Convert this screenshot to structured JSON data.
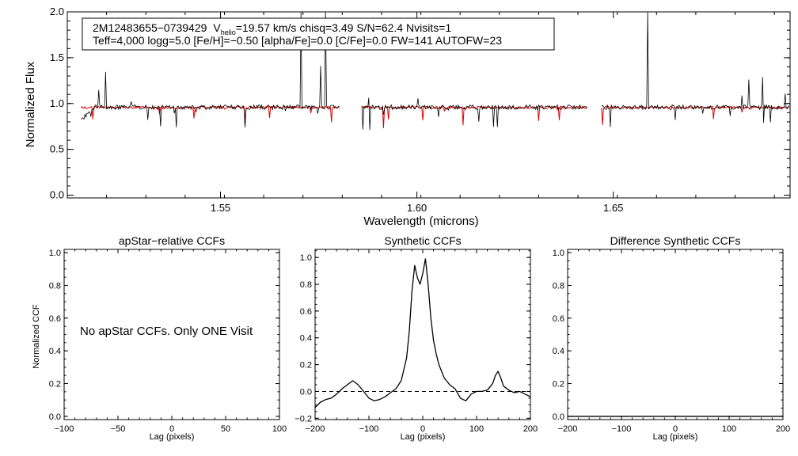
{
  "chart_data": [
    {
      "type": "line",
      "id": "spectrum",
      "ylabel": "Normalized Flux",
      "xlabel": "Wavelength (microns)",
      "xlim": [
        1.511,
        1.695
      ],
      "ylim": [
        -0.03,
        2.0
      ],
      "x_ticks": [
        1.55,
        1.6,
        1.65
      ],
      "x_tick_labels": [
        "1.55",
        "1.60",
        "1.65"
      ],
      "y_ticks": [
        0.0,
        0.5,
        1.0,
        1.5,
        2.0
      ],
      "y_tick_labels": [
        "0.0",
        "0.5",
        "1.0",
        "1.5",
        "2.0"
      ],
      "chip_ranges": [
        [
          1.5145,
          1.5805
        ],
        [
          1.586,
          1.6435
        ],
        [
          1.647,
          1.695
        ]
      ],
      "series": [
        {
          "name": "observed",
          "color": "#000000",
          "baseline": 0.96
        },
        {
          "name": "synthetic",
          "color": "#dd0000",
          "baseline": 0.97
        }
      ],
      "info_box": {
        "line1_star": "2M12483655−0739429",
        "line1_v": "V",
        "line1_v_sub": "helio",
        "line1_rest": "=19.57 km/s  chisq=3.49  S/N=62.4  Nvisits=1",
        "line2": "Teff=4,000 logg=5.0 [Fe/H]=−0.50 [alpha/Fe]=0.0 [C/Fe]=0.0 FW=141 AUTOFW=23"
      }
    },
    {
      "type": "line",
      "id": "apstar_ccf",
      "title": "apStar−relative CCFs",
      "ylabel": "Normalized CCF",
      "xlabel": "Lag (pixels)",
      "xlim": [
        -100,
        100
      ],
      "ylim": [
        -0.02,
        1.02
      ],
      "x_ticks": [
        -100,
        -50,
        0,
        50,
        100
      ],
      "x_tick_labels": [
        "−100",
        "−50",
        "0",
        "50",
        "100"
      ],
      "y_ticks": [
        0.0,
        0.2,
        0.4,
        0.6,
        0.8,
        1.0
      ],
      "y_tick_labels": [
        "0.0",
        "0.2",
        "0.4",
        "0.6",
        "0.8",
        "1.0"
      ],
      "annotation": "No apStar CCFs.  Only ONE Visit",
      "series": []
    },
    {
      "type": "line",
      "id": "synthetic_ccf",
      "title": "Synthetic CCFs",
      "xlabel": "Lag (pixels)",
      "xlim": [
        -200,
        200
      ],
      "ylim": [
        -0.21,
        1.06
      ],
      "x_ticks": [
        -200,
        -100,
        0,
        100,
        200
      ],
      "x_tick_labels": [
        "−200",
        "−100",
        "0",
        "100",
        "200"
      ],
      "y_ticks": [
        -0.2,
        0.0,
        0.2,
        0.4,
        0.6,
        0.8,
        1.0
      ],
      "y_tick_labels": [
        "−0.2",
        "0.0",
        "0.2",
        "0.4",
        "0.6",
        "0.8",
        "1.0"
      ],
      "reference_line": 0.0,
      "series": [
        {
          "name": "synthetic CCF",
          "x": [
            -200,
            -190,
            -180,
            -170,
            -160,
            -150,
            -140,
            -130,
            -120,
            -110,
            -100,
            -90,
            -80,
            -70,
            -60,
            -50,
            -40,
            -30,
            -25,
            -20,
            -15,
            -10,
            -5,
            0,
            5,
            10,
            15,
            20,
            25,
            30,
            40,
            50,
            60,
            70,
            80,
            90,
            100,
            110,
            120,
            130,
            135,
            140,
            145,
            150,
            160,
            170,
            180,
            190,
            200
          ],
          "y": [
            -0.12,
            -0.08,
            -0.06,
            -0.05,
            -0.02,
            0.02,
            0.05,
            0.08,
            0.05,
            0.0,
            -0.05,
            -0.07,
            -0.06,
            -0.04,
            -0.01,
            0.02,
            0.08,
            0.25,
            0.45,
            0.75,
            0.94,
            0.85,
            0.8,
            0.88,
            0.99,
            0.8,
            0.55,
            0.38,
            0.28,
            0.2,
            0.1,
            0.05,
            0.02,
            -0.05,
            -0.07,
            -0.02,
            0.0,
            0.0,
            0.01,
            0.06,
            0.12,
            0.15,
            0.1,
            0.04,
            0.01,
            -0.01,
            0.0,
            -0.02,
            -0.04
          ]
        }
      ]
    },
    {
      "type": "line",
      "id": "difference_ccf",
      "title": "Difference Synthetic CCFs",
      "xlabel": "Lag (pixels)",
      "xlim": [
        -200,
        200
      ],
      "ylim": [
        -0.02,
        1.02
      ],
      "x_ticks": [
        -200,
        -100,
        0,
        100,
        200
      ],
      "x_tick_labels": [
        "−200",
        "−100",
        "0",
        "100",
        "200"
      ],
      "y_ticks": [
        0.0,
        0.2,
        0.4,
        0.6,
        0.8,
        1.0
      ],
      "y_tick_labels": [
        "0.0",
        "0.2",
        "0.4",
        "0.6",
        "0.8",
        "1.0"
      ],
      "series": [
        {
          "name": "difference CCF",
          "x": [
            -200,
            200
          ],
          "y": [
            0.0,
            0.0
          ]
        }
      ]
    }
  ]
}
